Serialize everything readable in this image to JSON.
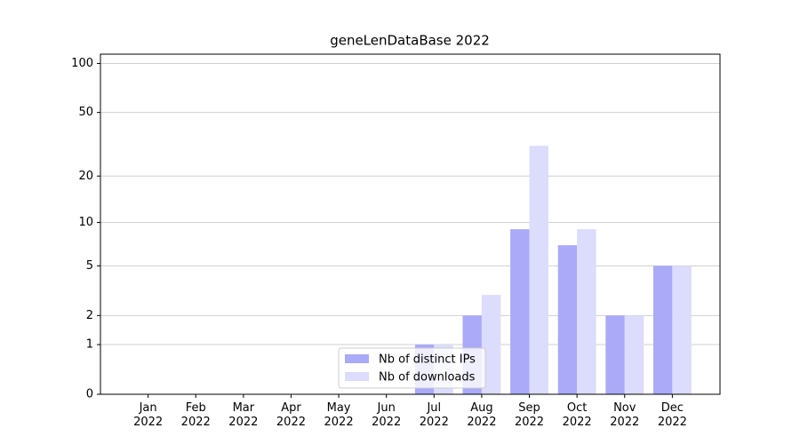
{
  "chart_data": {
    "type": "bar",
    "title": "geneLenDataBase 2022",
    "categories": [
      "Jan\n2022",
      "Feb\n2022",
      "Mar\n2022",
      "Apr\n2022",
      "May\n2022",
      "Jun\n2022",
      "Jul\n2022",
      "Aug\n2022",
      "Sep\n2022",
      "Oct\n2022",
      "Nov\n2022",
      "Dec\n2022"
    ],
    "series": [
      {
        "name": "Nb of distinct IPs",
        "color": "#aaaaf8",
        "values": [
          0,
          0,
          0,
          0,
          0,
          0,
          1,
          2,
          9,
          7,
          2,
          5
        ]
      },
      {
        "name": "Nb of downloads",
        "color": "#dcdcfc",
        "values": [
          0,
          0,
          0,
          0,
          0,
          0,
          1,
          3,
          31,
          9,
          2,
          5
        ]
      }
    ],
    "y_scale": "log1p",
    "ylim": [
      0,
      114
    ],
    "yticks": [
      0,
      1,
      2,
      5,
      10,
      20,
      50,
      100
    ],
    "grid": true,
    "legend": "lower center"
  }
}
